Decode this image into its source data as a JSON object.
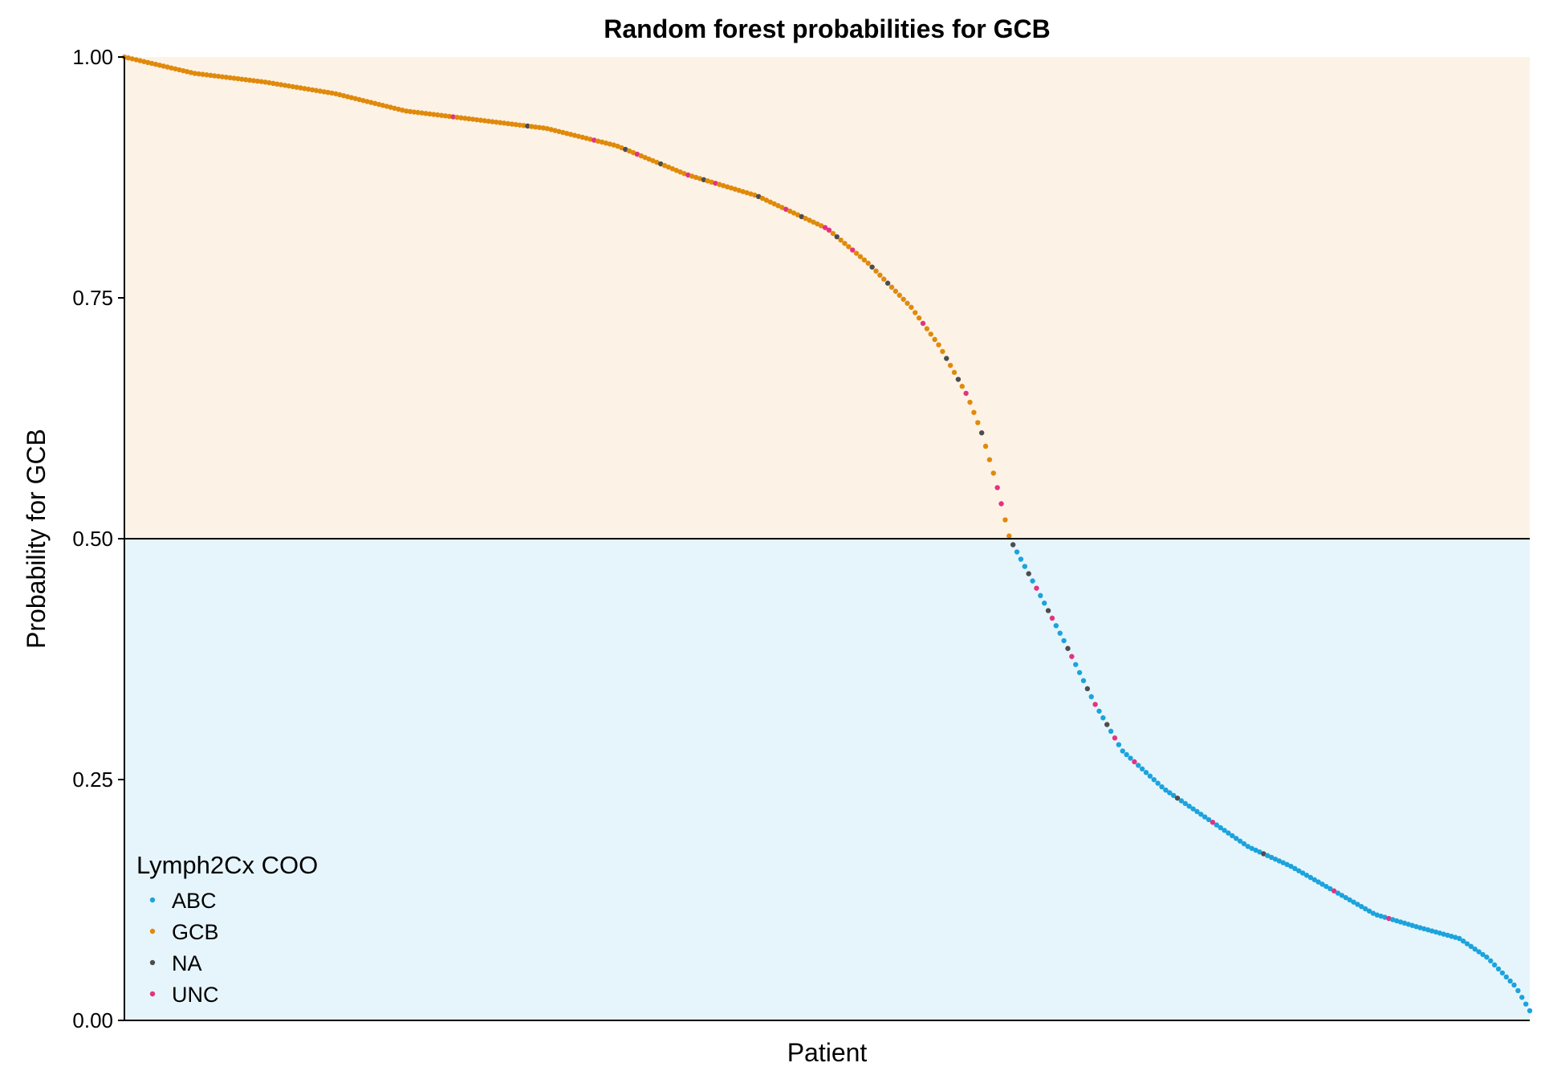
{
  "chart_data": {
    "type": "scatter",
    "title": "Random forest probabilities for GCB",
    "xlabel": "Patient",
    "ylabel": "Probability for GCB",
    "ylim": [
      0,
      1
    ],
    "yticks": [
      "0.00",
      "0.25",
      "0.50",
      "0.75",
      "1.00"
    ],
    "threshold": 0.5,
    "grid": false,
    "legend": {
      "title": "Lymph2Cx COO",
      "position": "bottom-left",
      "items": [
        {
          "name": "ABC",
          "color": "#1ca3dc"
        },
        {
          "name": "GCB",
          "color": "#e08a0b"
        },
        {
          "name": "NA",
          "color": "#4d4d4d"
        },
        {
          "name": "UNC",
          "color": "#e3337f"
        }
      ]
    },
    "regions": [
      {
        "from": 0.5,
        "to": 1.0,
        "color": "#fdf2e6"
      },
      {
        "from": 0.0,
        "to": 0.5,
        "color": "#e6f5fc"
      }
    ],
    "curve_knots": [
      [
        0,
        1.0
      ],
      [
        0.05,
        0.983
      ],
      [
        0.1,
        0.974
      ],
      [
        0.15,
        0.962
      ],
      [
        0.2,
        0.944
      ],
      [
        0.25,
        0.935
      ],
      [
        0.3,
        0.926
      ],
      [
        0.35,
        0.908
      ],
      [
        0.4,
        0.878
      ],
      [
        0.45,
        0.856
      ],
      [
        0.5,
        0.822
      ],
      [
        0.53,
        0.785
      ],
      [
        0.56,
        0.74
      ],
      [
        0.58,
        0.7
      ],
      [
        0.6,
        0.648
      ],
      [
        0.61,
        0.61
      ],
      [
        0.62,
        0.56
      ],
      [
        0.63,
        0.5
      ],
      [
        0.65,
        0.446
      ],
      [
        0.67,
        0.39
      ],
      [
        0.69,
        0.33
      ],
      [
        0.71,
        0.28
      ],
      [
        0.74,
        0.24
      ],
      [
        0.77,
        0.21
      ],
      [
        0.8,
        0.18
      ],
      [
        0.83,
        0.16
      ],
      [
        0.86,
        0.135
      ],
      [
        0.89,
        0.11
      ],
      [
        0.92,
        0.097
      ],
      [
        0.95,
        0.085
      ],
      [
        0.97,
        0.065
      ],
      [
        0.99,
        0.035
      ],
      [
        1.0,
        0.01
      ]
    ],
    "n_points": 360,
    "series_rules": [
      {
        "name": "GCB",
        "applies": "probability >= 0.5",
        "color": "#e08a0b"
      },
      {
        "name": "ABC",
        "applies": "probability < 0.5",
        "color": "#1ca3dc"
      }
    ],
    "overrides": [
      {
        "x": 0.233,
        "series": "UNC"
      },
      {
        "x": 0.288,
        "series": "NA"
      },
      {
        "x": 0.333,
        "series": "UNC"
      },
      {
        "x": 0.357,
        "series": "NA"
      },
      {
        "x": 0.365,
        "series": "UNC"
      },
      {
        "x": 0.383,
        "series": "NA"
      },
      {
        "x": 0.4,
        "series": "UNC"
      },
      {
        "x": 0.411,
        "series": "NA"
      },
      {
        "x": 0.422,
        "series": "UNC"
      },
      {
        "x": 0.451,
        "series": "NA"
      },
      {
        "x": 0.472,
        "series": "UNC"
      },
      {
        "x": 0.481,
        "series": "NA"
      },
      {
        "x": 0.5,
        "series": "UNC"
      },
      {
        "x": 0.508,
        "series": "NA"
      },
      {
        "x": 0.519,
        "series": "UNC"
      },
      {
        "x": 0.533,
        "series": "NA"
      },
      {
        "x": 0.544,
        "series": "NA"
      },
      {
        "x": 0.567,
        "series": "UNC"
      },
      {
        "x": 0.586,
        "series": "NA"
      },
      {
        "x": 0.594,
        "series": "NA"
      },
      {
        "x": 0.599,
        "series": "UNC"
      },
      {
        "x": 0.61,
        "series": "NA"
      },
      {
        "x": 0.62,
        "series": "UNC"
      },
      {
        "x": 0.625,
        "series": "UNC"
      },
      {
        "x": 0.632,
        "series": "NA"
      },
      {
        "x": 0.643,
        "series": "NA"
      },
      {
        "x": 0.649,
        "series": "UNC"
      },
      {
        "x": 0.658,
        "series": "NA"
      },
      {
        "x": 0.661,
        "series": "UNC"
      },
      {
        "x": 0.67,
        "series": "NA"
      },
      {
        "x": 0.674,
        "series": "UNC"
      },
      {
        "x": 0.684,
        "series": "NA"
      },
      {
        "x": 0.69,
        "series": "UNC"
      },
      {
        "x": 0.7,
        "series": "NA"
      },
      {
        "x": 0.705,
        "series": "UNC"
      },
      {
        "x": 0.718,
        "series": "UNC"
      },
      {
        "x": 0.75,
        "series": "NA"
      },
      {
        "x": 0.774,
        "series": "UNC"
      },
      {
        "x": 0.81,
        "series": "NA"
      },
      {
        "x": 0.86,
        "series": "UNC"
      },
      {
        "x": 0.9,
        "series": "UNC"
      }
    ]
  }
}
